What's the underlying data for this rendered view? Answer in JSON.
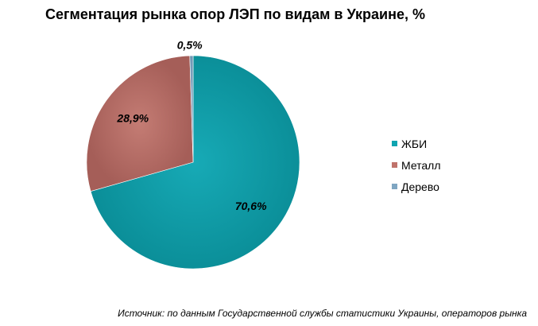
{
  "chart_data": {
    "type": "pie",
    "title": "Сегментация рынка опор ЛЭП по видам в Украине, %",
    "categories": [
      "ЖБИ",
      "Металл",
      "Дерево"
    ],
    "values": [
      70.6,
      28.9,
      0.5
    ],
    "value_labels": [
      "70,6%",
      "28,9%",
      "0,5%"
    ],
    "colors": [
      "#0ea4b0",
      "#c0736b",
      "#7fa6c2"
    ],
    "legend_position": "right"
  },
  "source_text": "Источник: по данным Государственной службы статистики Украины, операторов рынка"
}
